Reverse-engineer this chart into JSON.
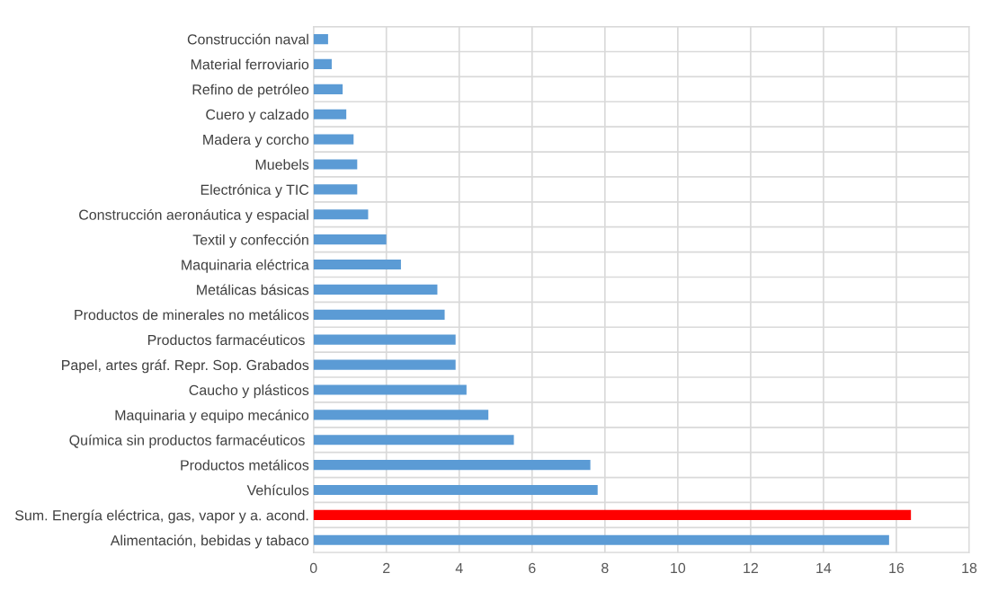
{
  "chart_data": {
    "type": "bar",
    "orientation": "horizontal",
    "categories": [
      "Construcción naval",
      "Material ferroviario",
      "Refino de petróleo",
      "Cuero y calzado",
      "Madera y corcho",
      "Muebels",
      "Electrónica y TIC",
      "Construcción aeronáutica y espacial",
      "Textil y confección",
      "Maquinaria eléctrica",
      "Metálicas básicas",
      "Productos de minerales no metálicos",
      "Productos farmacéuticos ",
      "Papel, artes gráf. Repr. Sop. Grabados",
      "Caucho y plásticos",
      "Maquinaria y equipo mecánico",
      "Química sin productos farmacéuticos ",
      "Productos metálicos",
      "Vehículos",
      "Sum. Energía eléctrica, gas, vapor y a. acond.",
      "Alimentación, bebidas y tabaco"
    ],
    "values": [
      0.4,
      0.5,
      0.8,
      0.9,
      1.1,
      1.2,
      1.2,
      1.5,
      2.0,
      2.4,
      3.4,
      3.6,
      3.9,
      3.9,
      4.2,
      4.8,
      5.5,
      7.6,
      7.8,
      16.4,
      15.8
    ],
    "colors": [
      "#5b9bd5",
      "#5b9bd5",
      "#5b9bd5",
      "#5b9bd5",
      "#5b9bd5",
      "#5b9bd5",
      "#5b9bd5",
      "#5b9bd5",
      "#5b9bd5",
      "#5b9bd5",
      "#5b9bd5",
      "#5b9bd5",
      "#5b9bd5",
      "#5b9bd5",
      "#5b9bd5",
      "#5b9bd5",
      "#5b9bd5",
      "#5b9bd5",
      "#5b9bd5",
      "#ff0000",
      "#5b9bd5"
    ],
    "xlim": [
      0,
      18
    ],
    "xticks": [
      0,
      2,
      4,
      6,
      8,
      10,
      12,
      14,
      16,
      18
    ],
    "grid": true
  }
}
